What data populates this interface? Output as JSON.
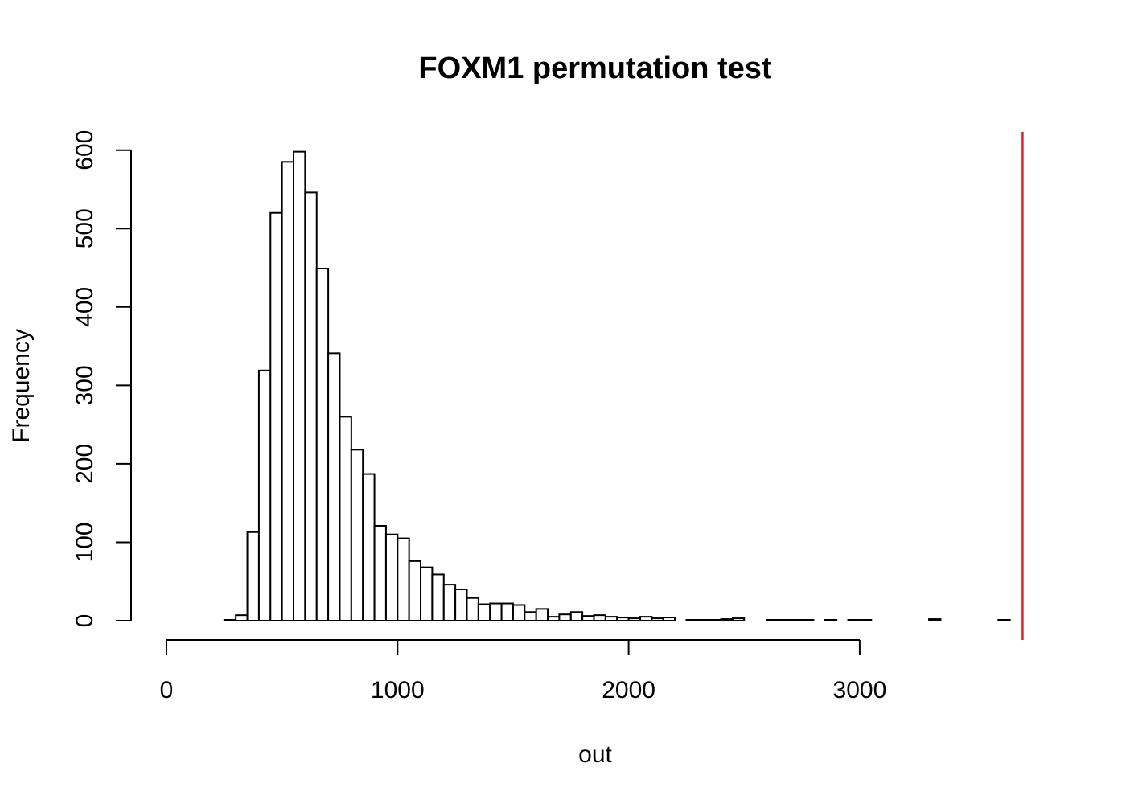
{
  "chart_data": {
    "type": "bar",
    "title": "FOXM1 permutation test",
    "xlabel": "out",
    "ylabel": "Frequency",
    "bin_width": 50,
    "x_start": 250,
    "values": [
      1,
      7,
      113,
      319,
      520,
      585,
      598,
      546,
      449,
      341,
      260,
      218,
      187,
      121,
      110,
      105,
      76,
      68,
      59,
      46,
      40,
      29,
      21,
      22,
      22,
      20,
      11,
      15,
      5,
      8,
      11,
      6,
      7,
      5,
      4,
      3,
      5,
      3,
      4,
      0,
      1,
      1,
      1,
      2,
      3,
      0,
      0,
      1,
      1,
      1,
      1,
      0,
      1,
      0,
      1,
      1,
      0,
      0,
      0,
      0,
      0,
      2,
      0,
      0,
      0,
      0,
      0,
      1
    ],
    "xlim": [
      0,
      3700
    ],
    "ylim": [
      0,
      620
    ],
    "x_ticks": [
      0,
      1000,
      2000,
      3000
    ],
    "y_ticks": [
      0,
      100,
      200,
      300,
      400,
      500,
      600
    ],
    "x_tick_labels": [
      "0",
      "1000",
      "2000",
      "3000"
    ],
    "y_tick_labels": [
      "0",
      "100",
      "200",
      "300",
      "400",
      "500",
      "600"
    ],
    "reference_line": {
      "x": 3705,
      "color": "#e0202a"
    },
    "grid": false,
    "legend": "none"
  }
}
